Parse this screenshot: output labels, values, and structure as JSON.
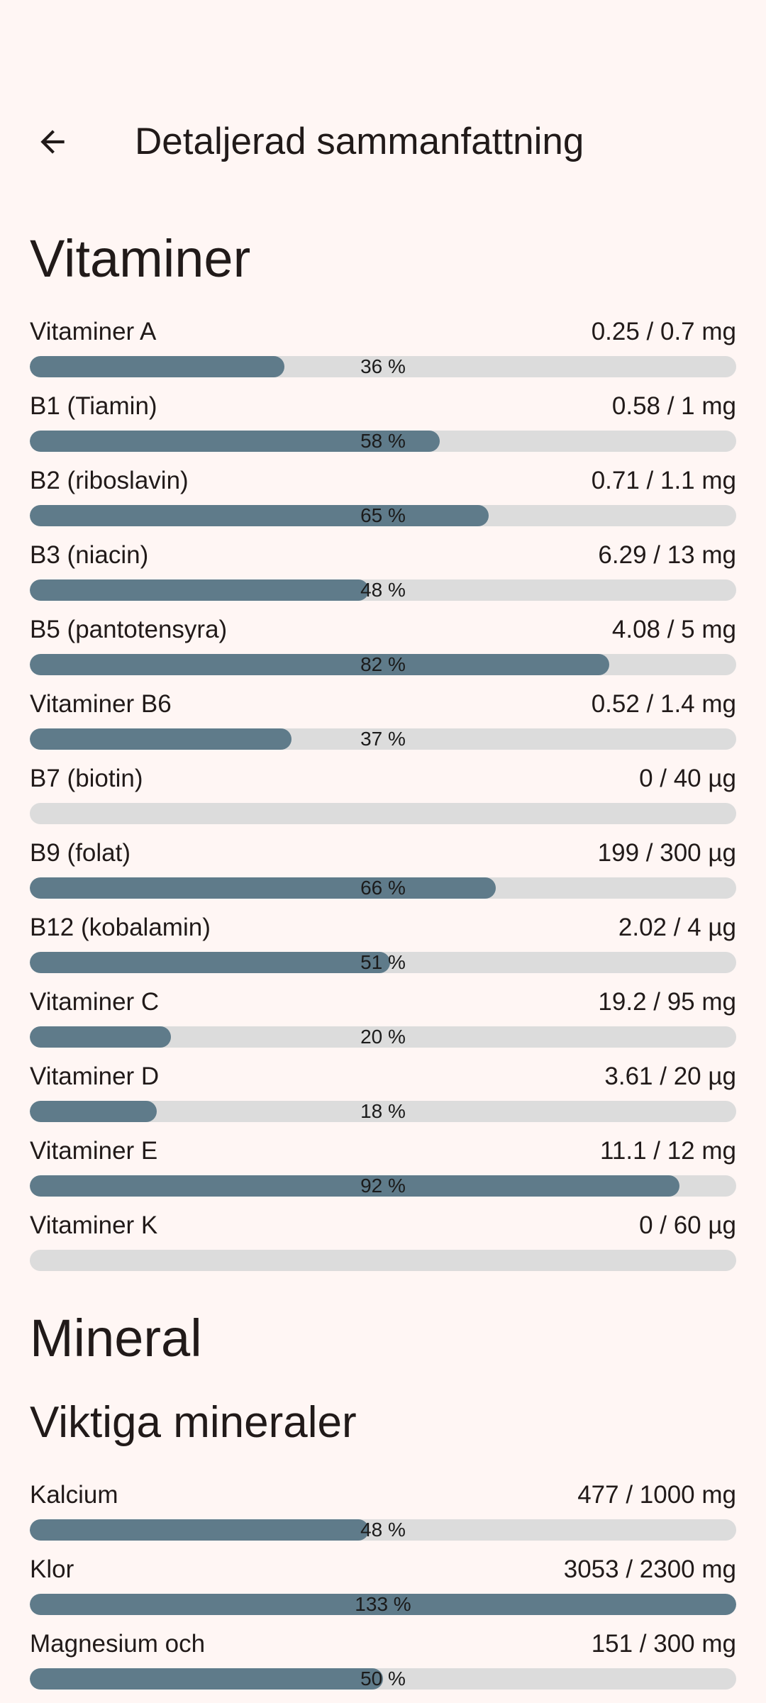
{
  "header": {
    "title": "Detaljerad sammanfattning",
    "back_icon": "arrow-back-icon"
  },
  "vitamins": {
    "title": "Vitaminer",
    "items": [
      {
        "label": "Vitaminer A",
        "amount": "0.25 / 0.7 mg",
        "percent_text": "36 %",
        "progress": 0.36
      },
      {
        "label": "B1 (Tiamin)",
        "amount": "0.58 / 1 mg",
        "percent_text": "58 %",
        "progress": 0.58
      },
      {
        "label": "B2 (riboslavin)",
        "amount": "0.71 / 1.1 mg",
        "percent_text": "65 %",
        "progress": 0.65
      },
      {
        "label": "B3 (niacin)",
        "amount": "6.29 / 13 mg",
        "percent_text": "48 %",
        "progress": 0.48
      },
      {
        "label": "B5 (pantotensyra)",
        "amount": "4.08 / 5 mg",
        "percent_text": "82 %",
        "progress": 0.82
      },
      {
        "label": "Vitaminer B6",
        "amount": "0.52 / 1.4 mg",
        "percent_text": "37 %",
        "progress": 0.37
      },
      {
        "label": "B7 (biotin)",
        "amount": "0 / 40 µg",
        "percent_text": "",
        "progress": 0
      },
      {
        "label": "B9 (folat)",
        "amount": "199 / 300 µg",
        "percent_text": "66 %",
        "progress": 0.66
      },
      {
        "label": "B12 (kobalamin)",
        "amount": "2.02 / 4 µg",
        "percent_text": "51 %",
        "progress": 0.51
      },
      {
        "label": "Vitaminer C",
        "amount": "19.2 / 95 mg",
        "percent_text": "20 %",
        "progress": 0.2
      },
      {
        "label": "Vitaminer D",
        "amount": "3.61 / 20 µg",
        "percent_text": "18 %",
        "progress": 0.18
      },
      {
        "label": "Vitaminer E",
        "amount": "11.1 / 12 mg",
        "percent_text": "92 %",
        "progress": 0.92
      },
      {
        "label": "Vitaminer K",
        "amount": "0 / 60 µg",
        "percent_text": "",
        "progress": 0
      }
    ]
  },
  "minerals": {
    "title": "Mineral",
    "subtitle": "Viktiga mineraler",
    "items": [
      {
        "label": "Kalcium",
        "amount": "477 / 1000 mg",
        "percent_text": "48 %",
        "progress": 0.48
      },
      {
        "label": "Klor",
        "amount": "3053 / 2300 mg",
        "percent_text": "133 %",
        "progress": 1.33
      },
      {
        "label": "Magnesium och",
        "amount": "151 / 300 mg",
        "percent_text": "50 %",
        "progress": 0.5
      }
    ]
  },
  "colors": {
    "background": "#fff6f4",
    "bar_fill": "#5f7b8a",
    "bar_track": "#dcdcdc",
    "text": "#211a19"
  }
}
